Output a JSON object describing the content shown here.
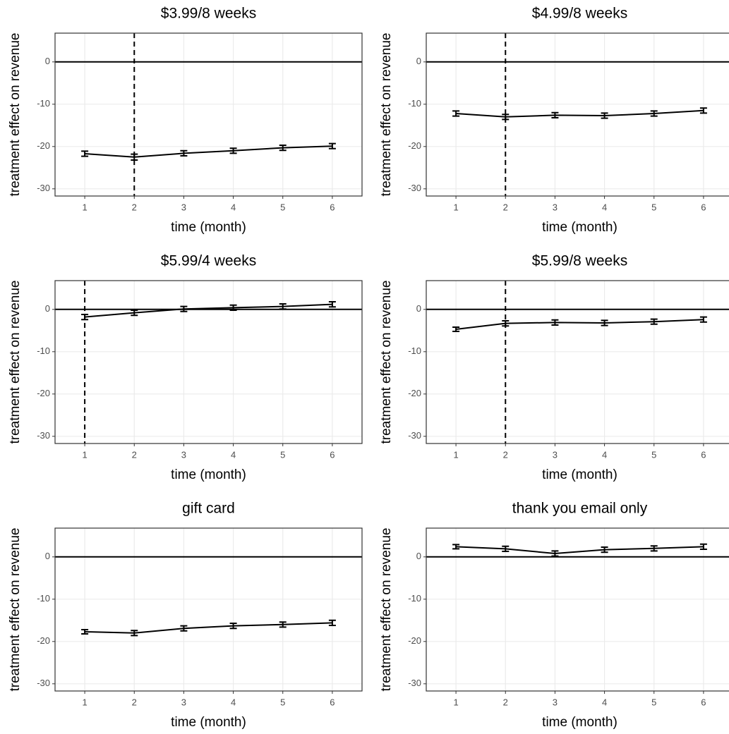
{
  "chart_data": [
    {
      "type": "line",
      "title": "$3.99/8 weeks",
      "xlabel": "time (month)",
      "ylabel": "treatment effect on revenue",
      "x": [
        1,
        2,
        3,
        4,
        5,
        6
      ],
      "values": [
        -21.7,
        -22.5,
        -21.6,
        -21.0,
        -20.3,
        -19.9
      ],
      "errors": [
        0.6,
        0.7,
        0.6,
        0.6,
        0.6,
        0.6
      ],
      "xlim": [
        0.4,
        6.6
      ],
      "ylim": [
        -31.7,
        6.8
      ],
      "xticks": [
        1,
        2,
        3,
        4,
        5,
        6
      ],
      "yticks": [
        0,
        -10,
        -20,
        -30
      ],
      "hline": 0,
      "vline": 2,
      "color": "#000000",
      "grid": true
    },
    {
      "type": "line",
      "title": "$4.99/8 weeks",
      "xlabel": "time (month)",
      "ylabel": "treatment effect on revenue",
      "x": [
        1,
        2,
        3,
        4,
        5,
        6
      ],
      "values": [
        -12.2,
        -13.0,
        -12.6,
        -12.7,
        -12.2,
        -11.5
      ],
      "errors": [
        0.6,
        0.6,
        0.6,
        0.6,
        0.6,
        0.6
      ],
      "xlim": [
        0.4,
        6.6
      ],
      "ylim": [
        -31.7,
        6.8
      ],
      "xticks": [
        1,
        2,
        3,
        4,
        5,
        6
      ],
      "yticks": [
        0,
        -10,
        -20,
        -30
      ],
      "hline": 0,
      "vline": 2,
      "color": "#000000",
      "grid": true
    },
    {
      "type": "line",
      "title": "$5.99/4 weeks",
      "xlabel": "time (month)",
      "ylabel": "treatment effect on revenue",
      "x": [
        1,
        2,
        3,
        4,
        5,
        6
      ],
      "values": [
        -1.8,
        -0.8,
        0.1,
        0.4,
        0.7,
        1.2
      ],
      "errors": [
        0.6,
        0.6,
        0.6,
        0.6,
        0.6,
        0.6
      ],
      "xlim": [
        0.4,
        6.6
      ],
      "ylim": [
        -31.7,
        6.8
      ],
      "xticks": [
        1,
        2,
        3,
        4,
        5,
        6
      ],
      "yticks": [
        0,
        -10,
        -20,
        -30
      ],
      "hline": 0,
      "vline": 1,
      "color": "#000000",
      "grid": true
    },
    {
      "type": "line",
      "title": "$5.99/8 weeks",
      "xlabel": "time (month)",
      "ylabel": "treatment effect on revenue",
      "x": [
        1,
        2,
        3,
        4,
        5,
        6
      ],
      "values": [
        -4.7,
        -3.3,
        -3.1,
        -3.2,
        -2.9,
        -2.4
      ],
      "errors": [
        0.5,
        0.6,
        0.6,
        0.6,
        0.6,
        0.6
      ],
      "xlim": [
        0.4,
        6.6
      ],
      "ylim": [
        -31.7,
        6.8
      ],
      "xticks": [
        1,
        2,
        3,
        4,
        5,
        6
      ],
      "yticks": [
        0,
        -10,
        -20,
        -30
      ],
      "hline": 0,
      "vline": 2,
      "color": "#000000",
      "grid": true
    },
    {
      "type": "line",
      "title": "gift card",
      "xlabel": "time (month)",
      "ylabel": "treatment effect on revenue",
      "x": [
        1,
        2,
        3,
        4,
        5,
        6
      ],
      "values": [
        -17.7,
        -18.0,
        -16.9,
        -16.3,
        -16.0,
        -15.6
      ],
      "errors": [
        0.5,
        0.6,
        0.6,
        0.6,
        0.6,
        0.6
      ],
      "xlim": [
        0.4,
        6.6
      ],
      "ylim": [
        -31.7,
        6.8
      ],
      "xticks": [
        1,
        2,
        3,
        4,
        5,
        6
      ],
      "yticks": [
        0,
        -10,
        -20,
        -30
      ],
      "hline": 0,
      "color": "#000000",
      "grid": true
    },
    {
      "type": "line",
      "title": "thank you email only",
      "xlabel": "time (month)",
      "ylabel": "treatment effect on revenue",
      "x": [
        1,
        2,
        3,
        4,
        5,
        6
      ],
      "values": [
        2.4,
        1.9,
        0.8,
        1.7,
        2.0,
        2.4
      ],
      "errors": [
        0.5,
        0.6,
        0.6,
        0.6,
        0.6,
        0.6
      ],
      "xlim": [
        0.4,
        6.6
      ],
      "ylim": [
        -31.7,
        6.8
      ],
      "xticks": [
        1,
        2,
        3,
        4,
        5,
        6
      ],
      "yticks": [
        0,
        -10,
        -20,
        -30
      ],
      "hline": 0,
      "color": "#000000",
      "grid": true
    }
  ]
}
